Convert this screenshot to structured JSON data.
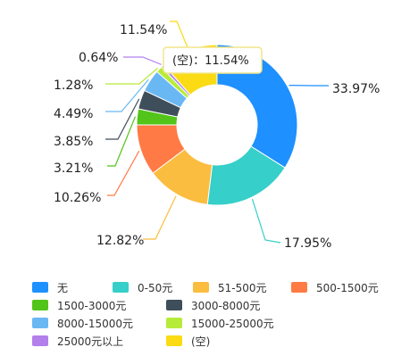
{
  "chart_data": {
    "type": "pie",
    "variant": "donut",
    "categories": [
      "无",
      "0-50元",
      "51-500元",
      "500-1500元",
      "1500-3000元",
      "3000-8000元",
      "8000-15000元",
      "15000-25000元",
      "25000元以上",
      "(空)"
    ],
    "values": [
      33.97,
      17.95,
      12.82,
      10.26,
      3.21,
      3.85,
      4.49,
      1.28,
      0.64,
      11.54
    ],
    "labels": [
      "33.97%",
      "17.95%",
      "12.82%",
      "10.26%",
      "3.21%",
      "3.85%",
      "4.49%",
      "1.28%",
      "0.64%",
      "11.54%"
    ],
    "colors": [
      "#1E90FF",
      "#36CFC9",
      "#FBBD3F",
      "#FF7A45",
      "#52C41A",
      "#3F4E5B",
      "#69B8F4",
      "#B7EB3A",
      "#B37FEB",
      "#FADB14"
    ],
    "legend_position": "bottom",
    "tooltip": {
      "category": "(空)",
      "text": "(空)：11.54%"
    }
  }
}
